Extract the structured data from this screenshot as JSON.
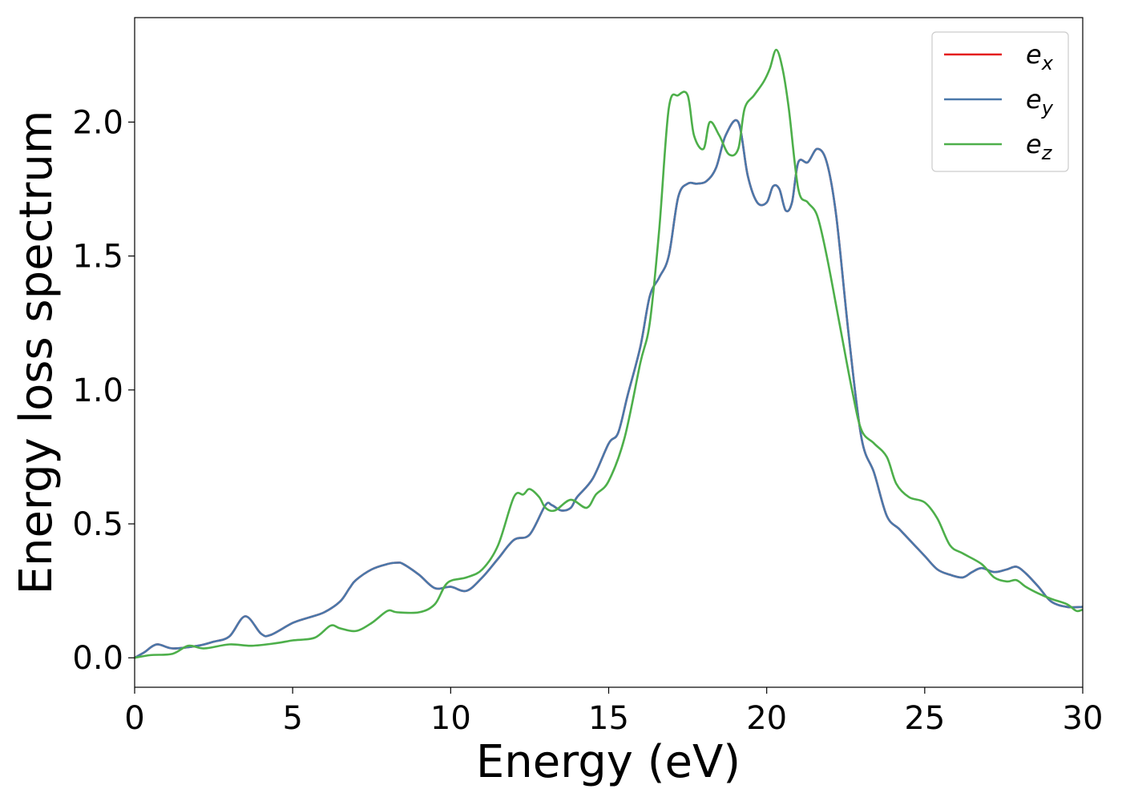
{
  "chart_data": {
    "type": "line",
    "title": "",
    "xlabel": "Energy (eV)",
    "ylabel": "Energy loss spectrum",
    "xlim": [
      0,
      30
    ],
    "ylim": [
      -0.11,
      2.39
    ],
    "xticks": [
      0,
      5,
      10,
      15,
      20,
      25,
      30
    ],
    "xtick_labels": [
      "0",
      "5",
      "10",
      "15",
      "20",
      "25",
      "30"
    ],
    "yticks": [
      0.0,
      0.5,
      1.0,
      1.5,
      2.0
    ],
    "ytick_labels": [
      "0.0",
      "0.5",
      "1.0",
      "1.5",
      "2.0"
    ],
    "grid": false,
    "legend_position": "top-right",
    "series": [
      {
        "name": "e_x",
        "label_base": "e",
        "label_sub": "x",
        "color": "#e41a1c",
        "x": [
          0,
          0.3,
          0.7,
          1.2,
          2,
          2.5,
          3,
          3.5,
          4,
          4.3,
          5,
          5.5,
          6,
          6.5,
          6.8,
          7,
          7.5,
          8,
          8.3,
          8.5,
          9,
          9.5,
          10,
          10.5,
          11,
          11.5,
          12,
          12.5,
          13,
          13.2,
          13.5,
          13.8,
          14,
          14.5,
          15,
          15.3,
          15.6,
          16,
          16.3,
          16.6,
          16.9,
          17.2,
          17.5,
          17.8,
          18.1,
          18.4,
          18.7,
          19.1,
          19.4,
          19.7,
          20,
          20.2,
          20.4,
          20.6,
          20.8,
          21,
          21.3,
          21.6,
          21.9,
          22.2,
          22.6,
          23,
          23.4,
          23.8,
          24.2,
          24.6,
          25,
          25.4,
          25.8,
          26.2,
          26.5,
          26.8,
          27.2,
          27.6,
          27.9,
          28.2,
          28.6,
          29,
          29.5,
          30
        ],
        "y": [
          0.0,
          0.02,
          0.05,
          0.035,
          0.045,
          0.06,
          0.08,
          0.155,
          0.09,
          0.085,
          0.13,
          0.15,
          0.17,
          0.21,
          0.26,
          0.29,
          0.33,
          0.35,
          0.355,
          0.35,
          0.31,
          0.26,
          0.265,
          0.25,
          0.3,
          0.37,
          0.44,
          0.46,
          0.57,
          0.57,
          0.55,
          0.56,
          0.6,
          0.67,
          0.8,
          0.84,
          0.98,
          1.16,
          1.35,
          1.42,
          1.5,
          1.72,
          1.77,
          1.77,
          1.78,
          1.83,
          1.95,
          2.0,
          1.8,
          1.7,
          1.7,
          1.76,
          1.75,
          1.67,
          1.7,
          1.85,
          1.85,
          1.9,
          1.85,
          1.65,
          1.2,
          0.82,
          0.69,
          0.53,
          0.48,
          0.43,
          0.38,
          0.33,
          0.31,
          0.3,
          0.32,
          0.335,
          0.32,
          0.33,
          0.34,
          0.315,
          0.265,
          0.21,
          0.19,
          0.19
        ]
      },
      {
        "name": "e_y",
        "label_base": "e",
        "label_sub": "y",
        "color": "#4a78aa",
        "x": [
          0,
          0.3,
          0.7,
          1.2,
          2,
          2.5,
          3,
          3.5,
          4,
          4.3,
          5,
          5.5,
          6,
          6.5,
          6.8,
          7,
          7.5,
          8,
          8.3,
          8.5,
          9,
          9.5,
          10,
          10.5,
          11,
          11.5,
          12,
          12.5,
          13,
          13.2,
          13.5,
          13.8,
          14,
          14.5,
          15,
          15.3,
          15.6,
          16,
          16.3,
          16.6,
          16.9,
          17.2,
          17.5,
          17.8,
          18.1,
          18.4,
          18.7,
          19.1,
          19.4,
          19.7,
          20,
          20.2,
          20.4,
          20.6,
          20.8,
          21,
          21.3,
          21.6,
          21.9,
          22.2,
          22.6,
          23,
          23.4,
          23.8,
          24.2,
          24.6,
          25,
          25.4,
          25.8,
          26.2,
          26.5,
          26.8,
          27.2,
          27.6,
          27.9,
          28.2,
          28.6,
          29,
          29.5,
          30
        ],
        "y": [
          0.0,
          0.02,
          0.05,
          0.035,
          0.045,
          0.06,
          0.08,
          0.155,
          0.09,
          0.085,
          0.13,
          0.15,
          0.17,
          0.21,
          0.26,
          0.29,
          0.33,
          0.35,
          0.355,
          0.35,
          0.31,
          0.26,
          0.265,
          0.25,
          0.3,
          0.37,
          0.44,
          0.46,
          0.57,
          0.57,
          0.55,
          0.56,
          0.6,
          0.67,
          0.8,
          0.84,
          0.98,
          1.16,
          1.35,
          1.42,
          1.5,
          1.72,
          1.77,
          1.77,
          1.78,
          1.83,
          1.95,
          2.0,
          1.8,
          1.7,
          1.7,
          1.76,
          1.75,
          1.67,
          1.7,
          1.85,
          1.85,
          1.9,
          1.85,
          1.65,
          1.2,
          0.82,
          0.69,
          0.53,
          0.48,
          0.43,
          0.38,
          0.33,
          0.31,
          0.3,
          0.32,
          0.335,
          0.32,
          0.33,
          0.34,
          0.315,
          0.265,
          0.21,
          0.19,
          0.19
        ]
      },
      {
        "name": "e_z",
        "label_base": "e",
        "label_sub": "z",
        "color": "#4daf4a",
        "x": [
          0,
          0.5,
          1.2,
          1.7,
          2.2,
          3,
          3.7,
          4.5,
          5,
          5.7,
          6.2,
          6.5,
          7,
          7.5,
          8,
          8.3,
          9,
          9.5,
          9.9,
          10.5,
          11,
          11.5,
          12,
          12.3,
          12.5,
          12.8,
          13,
          13.3,
          13.8,
          14.3,
          14.6,
          15,
          15.5,
          16,
          16.3,
          16.6,
          16.9,
          17.2,
          17.5,
          17.7,
          18,
          18.2,
          18.5,
          18.8,
          19.1,
          19.3,
          19.6,
          19.9,
          20.1,
          20.3,
          20.5,
          20.7,
          21,
          21.3,
          21.6,
          21.9,
          22.3,
          22.7,
          23,
          23.4,
          23.8,
          24.1,
          24.5,
          25,
          25.4,
          25.8,
          26.2,
          26.8,
          27.2,
          27.6,
          27.9,
          28.2,
          28.6,
          29,
          29.5,
          29.8,
          30
        ],
        "y": [
          0.0,
          0.01,
          0.015,
          0.045,
          0.035,
          0.05,
          0.045,
          0.055,
          0.065,
          0.075,
          0.12,
          0.11,
          0.1,
          0.13,
          0.175,
          0.17,
          0.17,
          0.2,
          0.28,
          0.3,
          0.33,
          0.42,
          0.6,
          0.61,
          0.63,
          0.6,
          0.56,
          0.55,
          0.59,
          0.56,
          0.61,
          0.66,
          0.82,
          1.1,
          1.25,
          1.6,
          2.05,
          2.1,
          2.1,
          1.95,
          1.9,
          2.0,
          1.95,
          1.88,
          1.9,
          2.05,
          2.1,
          2.15,
          2.2,
          2.27,
          2.2,
          2.05,
          1.75,
          1.7,
          1.65,
          1.5,
          1.25,
          1.0,
          0.85,
          0.8,
          0.75,
          0.65,
          0.6,
          0.58,
          0.52,
          0.42,
          0.39,
          0.35,
          0.3,
          0.285,
          0.29,
          0.265,
          0.24,
          0.22,
          0.2,
          0.175,
          0.18
        ]
      }
    ]
  }
}
